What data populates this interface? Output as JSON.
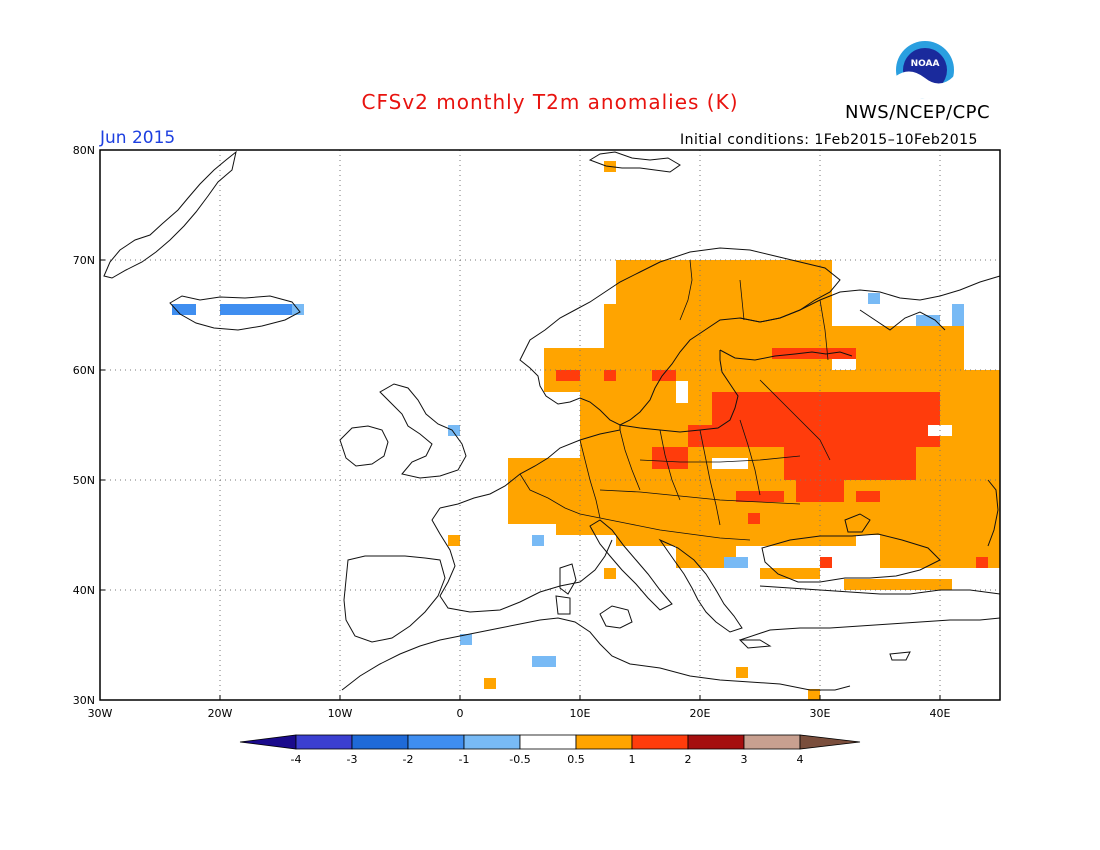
{
  "header": {
    "title": "CFSv2 monthly T2m anomalies (K)",
    "agency": "NWS/NCEP/CPC",
    "logo_text": "NOAA",
    "month": "Jun 2015",
    "initial_conditions": "Initial conditions: 1Feb2015–10Feb2015"
  },
  "map": {
    "lon_range": [
      -30,
      45
    ],
    "lat_range": [
      30,
      80
    ],
    "lat_ticks": [
      "80N",
      "70N",
      "60N",
      "50N",
      "40N",
      "30N"
    ],
    "lon_ticks": [
      "30W",
      "20W",
      "10W",
      "0",
      "10E",
      "20E",
      "30E",
      "40E"
    ],
    "gridlines": "dotted"
  },
  "colorbar": {
    "labels": [
      "-4",
      "-3",
      "-2",
      "-1",
      "-0.5",
      "0.5",
      "1",
      "2",
      "3",
      "4"
    ],
    "colors": [
      "#1a0a8c",
      "#3b3fd0",
      "#1f6ad8",
      "#3f8ef0",
      "#78baf5",
      "#ffffff",
      "#ffa400",
      "#ff3c0c",
      "#a50f0f",
      "#c8a090",
      "#7a4e3c"
    ]
  },
  "anomaly_colors": {
    "plus_0_5_to_1": "#ffa400",
    "plus_1_to_2": "#ff3c0c",
    "minus_1_to_minus_0_5": "#78baf5",
    "minus_2_to_minus_1": "#3f8ef0"
  }
}
